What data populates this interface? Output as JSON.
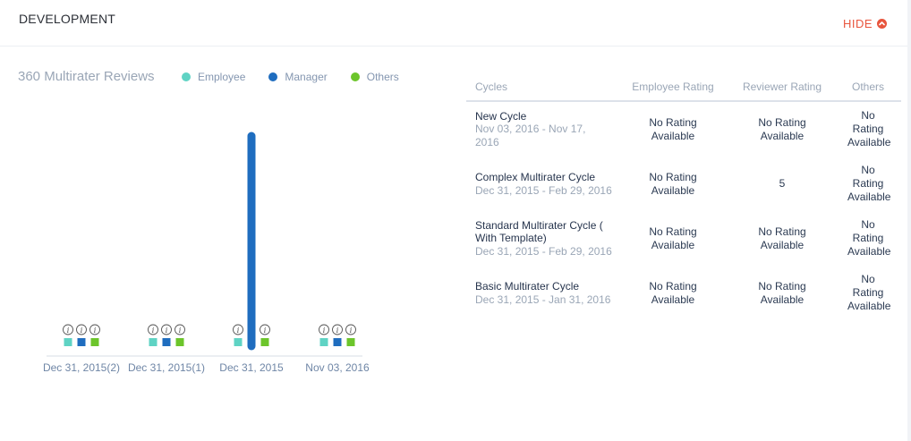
{
  "header": {
    "title": "DEVELOPMENT",
    "hide_label": "HIDE"
  },
  "chart": {
    "title": "360 Multirater Reviews",
    "legend": [
      {
        "label": "Employee",
        "color": "#5fd3c4"
      },
      {
        "label": "Manager",
        "color": "#1f6dbf"
      },
      {
        "label": "Others",
        "color": "#6cc52b"
      }
    ]
  },
  "chart_data": {
    "type": "bar",
    "title": "360 Multirater Reviews",
    "categories": [
      "Dec 31, 2015(2)",
      "Dec 31, 2015(1)",
      "Dec 31, 2015",
      "Nov 03, 2016"
    ],
    "series": [
      {
        "name": "Employee",
        "values": [
          0,
          0,
          0,
          0
        ]
      },
      {
        "name": "Manager",
        "values": [
          0,
          0,
          5,
          0
        ]
      },
      {
        "name": "Others",
        "values": [
          0,
          0,
          0,
          0
        ]
      }
    ],
    "ylim": [
      0,
      5
    ],
    "grid": false,
    "legend_position": "top",
    "info_marker": "i"
  },
  "table": {
    "headers": {
      "cycles": "Cycles",
      "employee_rating": "Employee Rating",
      "reviewer_rating": "Reviewer Rating",
      "others": "Others"
    },
    "rows": [
      {
        "name": "New Cycle",
        "dates": "Nov 03, 2016 - Nov 17, 2016",
        "employee": "No Rating Available",
        "reviewer": "No Rating Available",
        "others": "No Rating Available"
      },
      {
        "name": "Complex Multirater Cycle",
        "dates": "Dec 31, 2015 - Feb 29, 2016",
        "employee": "No Rating Available",
        "reviewer": "5",
        "others": "No Rating Available"
      },
      {
        "name": "Standard Multirater Cycle ( With Template)",
        "dates": "Dec 31, 2015 - Feb 29, 2016",
        "employee": "No Rating Available",
        "reviewer": "No Rating Available",
        "others": "No Rating Available"
      },
      {
        "name": "Basic Multirater Cycle",
        "dates": "Dec 31, 2015 - Jan 31, 2016",
        "employee": "No Rating Available",
        "reviewer": "No Rating Available",
        "others": "No Rating Available"
      }
    ]
  }
}
